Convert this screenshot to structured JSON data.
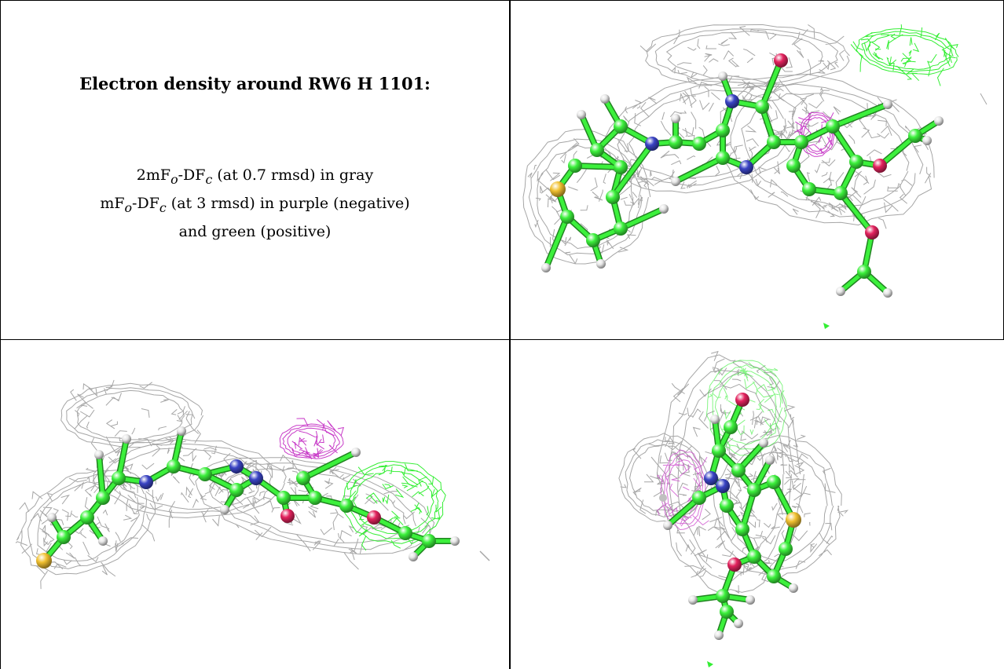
{
  "caption": {
    "heading": "Electron density around RW6 H 1101:",
    "line1": {
      "base": "2mF",
      "sub1": "o",
      "mid": "-DF",
      "sub2": "c",
      "tail": " (at 0.7 rmsd) in gray"
    },
    "line2": {
      "base": "mF",
      "sub1": "o",
      "mid": "-DF",
      "sub2": "c",
      "tail": " (at 3 rmsd) in purple (negative)"
    },
    "line3": "and green (positive)"
  },
  "panels": [
    {
      "view": "front",
      "ligand": "RW6 H 1101"
    },
    {
      "view": "side",
      "ligand": "RW6 H 1101"
    },
    {
      "view": "edge",
      "ligand": "RW6 H 1101"
    }
  ],
  "colors": {
    "mesh_2fofc": "#a6a6a6",
    "mesh_negative": "#c83cc8",
    "mesh_positive": "#33ee33",
    "carbon": "#3cf03c",
    "nitrogen": "#3a44c4",
    "oxygen": "#e3235e",
    "sulfur": "#f0c030",
    "hydrogen": "#e6e6e6",
    "border": "#000000"
  }
}
